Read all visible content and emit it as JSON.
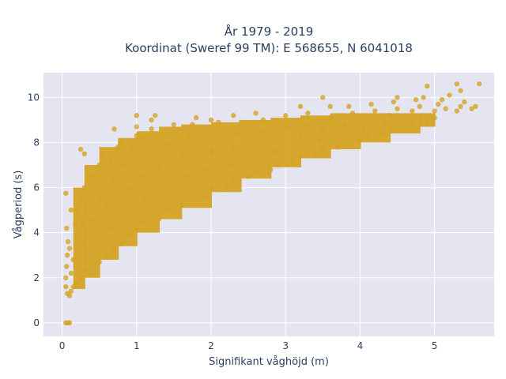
{
  "chart_data": {
    "type": "scatter",
    "title_line1": "År 1979 - 2019",
    "title_line2": "Koordinat (Sweref 99 TM): E 568655, N 6041018",
    "xlabel": "Signifikant våghöjd (m)",
    "ylabel": "Vågperiod (s)",
    "xlim": [
      -0.25,
      5.8
    ],
    "ylim": [
      -0.6,
      11.1
    ],
    "x_ticks": [
      0,
      1,
      2,
      3,
      4,
      5
    ],
    "y_ticks": [
      0,
      2,
      4,
      6,
      8,
      10
    ],
    "grid": true,
    "legend": "none",
    "colors": {
      "marker": "#d4a323",
      "plot_background": "#e5e5f2",
      "grid": "#ffffff",
      "text": "#2a3f5f"
    },
    "points": [
      [
        0.05,
        0.0
      ],
      [
        0.08,
        0.0
      ],
      [
        0.1,
        0.0
      ],
      [
        0.05,
        5.75
      ],
      [
        0.05,
        1.6
      ],
      [
        0.05,
        2.0
      ],
      [
        0.06,
        2.5
      ],
      [
        0.07,
        3.0
      ],
      [
        0.08,
        3.6
      ],
      [
        0.06,
        4.2
      ],
      [
        0.07,
        1.3
      ],
      [
        0.1,
        1.2
      ],
      [
        0.12,
        1.4
      ],
      [
        0.15,
        1.6
      ],
      [
        0.12,
        2.2
      ],
      [
        0.15,
        2.8
      ],
      [
        0.1,
        3.3
      ],
      [
        0.18,
        4.4
      ],
      [
        0.2,
        5.0
      ],
      [
        0.12,
        5.0
      ],
      [
        0.2,
        1.7
      ],
      [
        0.25,
        2.0
      ],
      [
        0.3,
        2.3
      ],
      [
        0.22,
        3.0
      ],
      [
        0.3,
        3.5
      ],
      [
        0.28,
        4.5
      ],
      [
        0.25,
        5.5
      ],
      [
        0.3,
        6.0
      ],
      [
        0.35,
        6.5
      ],
      [
        0.4,
        2.4
      ],
      [
        0.5,
        2.7
      ],
      [
        0.45,
        3.5
      ],
      [
        0.4,
        4.6
      ],
      [
        0.5,
        5.5
      ],
      [
        0.45,
        6.5
      ],
      [
        0.5,
        7.0
      ],
      [
        0.55,
        7.5
      ],
      [
        0.25,
        7.7
      ],
      [
        0.3,
        7.5
      ],
      [
        0.6,
        3.0
      ],
      [
        0.7,
        3.3
      ],
      [
        0.65,
        4.2
      ],
      [
        0.6,
        5.2
      ],
      [
        0.7,
        6.3
      ],
      [
        0.65,
        7.2
      ],
      [
        0.75,
        7.8
      ],
      [
        0.8,
        8.0
      ],
      [
        0.7,
        8.6
      ],
      [
        0.8,
        3.5
      ],
      [
        0.9,
        3.9
      ],
      [
        0.85,
        4.8
      ],
      [
        0.9,
        6.0
      ],
      [
        0.85,
        7.0
      ],
      [
        0.95,
        7.8
      ],
      [
        1.0,
        8.3
      ],
      [
        1.0,
        8.7
      ],
      [
        1.0,
        4.2
      ],
      [
        1.1,
        4.5
      ],
      [
        1.1,
        5.5
      ],
      [
        1.05,
        6.5
      ],
      [
        1.15,
        7.5
      ],
      [
        1.1,
        8.2
      ],
      [
        1.2,
        8.6
      ],
      [
        1.2,
        9.0
      ],
      [
        1.25,
        9.2
      ],
      [
        1.0,
        9.2
      ],
      [
        1.3,
        4.6
      ],
      [
        1.4,
        5.0
      ],
      [
        1.35,
        6.0
      ],
      [
        1.3,
        7.0
      ],
      [
        1.4,
        7.9
      ],
      [
        1.45,
        8.4
      ],
      [
        1.5,
        8.8
      ],
      [
        1.6,
        5.2
      ],
      [
        1.7,
        5.6
      ],
      [
        1.65,
        6.5
      ],
      [
        1.6,
        7.5
      ],
      [
        1.7,
        8.3
      ],
      [
        1.75,
        8.8
      ],
      [
        1.8,
        9.1
      ],
      [
        1.9,
        5.6
      ],
      [
        2.0,
        6.0
      ],
      [
        1.95,
        6.8
      ],
      [
        2.0,
        7.6
      ],
      [
        2.05,
        8.4
      ],
      [
        2.1,
        8.9
      ],
      [
        2.0,
        9.0
      ],
      [
        2.2,
        6.0
      ],
      [
        2.3,
        6.3
      ],
      [
        2.25,
        7.0
      ],
      [
        2.3,
        7.8
      ],
      [
        2.35,
        8.4
      ],
      [
        2.4,
        8.9
      ],
      [
        2.3,
        9.2
      ],
      [
        2.5,
        6.5
      ],
      [
        2.6,
        6.7
      ],
      [
        2.55,
        7.3
      ],
      [
        2.6,
        8.0
      ],
      [
        2.7,
        8.5
      ],
      [
        2.7,
        9.0
      ],
      [
        2.6,
        9.3
      ],
      [
        2.8,
        6.8
      ],
      [
        2.9,
        7.0
      ],
      [
        2.85,
        7.6
      ],
      [
        2.9,
        8.2
      ],
      [
        3.0,
        8.7
      ],
      [
        3.0,
        9.2
      ],
      [
        3.1,
        7.2
      ],
      [
        3.2,
        7.4
      ],
      [
        3.15,
        7.9
      ],
      [
        3.2,
        8.3
      ],
      [
        3.3,
        8.8
      ],
      [
        3.3,
        9.3
      ],
      [
        3.2,
        9.6
      ],
      [
        3.4,
        7.5
      ],
      [
        3.5,
        7.7
      ],
      [
        3.45,
        8.1
      ],
      [
        3.5,
        8.6
      ],
      [
        3.6,
        9.1
      ],
      [
        3.6,
        9.6
      ],
      [
        3.7,
        7.8
      ],
      [
        3.8,
        8.0
      ],
      [
        3.75,
        8.4
      ],
      [
        3.8,
        8.8
      ],
      [
        3.9,
        9.3
      ],
      [
        3.85,
        9.6
      ],
      [
        4.0,
        8.1
      ],
      [
        4.1,
        8.3
      ],
      [
        4.05,
        8.6
      ],
      [
        4.1,
        9.0
      ],
      [
        4.2,
        9.4
      ],
      [
        4.15,
        9.7
      ],
      [
        4.3,
        8.4
      ],
      [
        4.4,
        8.6
      ],
      [
        4.35,
        8.9
      ],
      [
        4.4,
        9.2
      ],
      [
        4.5,
        9.5
      ],
      [
        4.45,
        9.8
      ],
      [
        4.6,
        8.7
      ],
      [
        4.7,
        8.8
      ],
      [
        4.65,
        9.1
      ],
      [
        4.7,
        9.4
      ],
      [
        4.8,
        9.6
      ],
      [
        4.75,
        9.9
      ],
      [
        4.9,
        8.9
      ],
      [
        5.0,
        9.1
      ],
      [
        5.0,
        9.4
      ],
      [
        5.05,
        9.7
      ],
      [
        5.15,
        9.5
      ],
      [
        5.1,
        9.9
      ],
      [
        5.2,
        10.1
      ],
      [
        5.3,
        9.4
      ],
      [
        5.35,
        9.6
      ],
      [
        5.4,
        9.8
      ],
      [
        5.3,
        10.6
      ],
      [
        5.35,
        10.3
      ],
      [
        5.5,
        9.5
      ],
      [
        5.55,
        9.6
      ],
      [
        5.6,
        10.6
      ],
      [
        4.9,
        10.5
      ],
      [
        4.85,
        10.0
      ],
      [
        3.5,
        10.0
      ],
      [
        4.5,
        10.0
      ]
    ],
    "bands": [
      {
        "x0": 0.15,
        "x1": 0.3,
        "y0": 1.5,
        "y1": 6.0
      },
      {
        "x0": 0.3,
        "x1": 0.5,
        "y0": 2.0,
        "y1": 7.0
      },
      {
        "x0": 0.5,
        "x1": 0.75,
        "y0": 2.8,
        "y1": 7.8
      },
      {
        "x0": 0.75,
        "x1": 1.0,
        "y0": 3.4,
        "y1": 8.2
      },
      {
        "x0": 1.0,
        "x1": 1.3,
        "y0": 4.0,
        "y1": 8.5
      },
      {
        "x0": 1.3,
        "x1": 1.6,
        "y0": 4.6,
        "y1": 8.7
      },
      {
        "x0": 1.6,
        "x1": 2.0,
        "y0": 5.1,
        "y1": 8.8
      },
      {
        "x0": 2.0,
        "x1": 2.4,
        "y0": 5.8,
        "y1": 8.9
      },
      {
        "x0": 2.4,
        "x1": 2.8,
        "y0": 6.4,
        "y1": 9.0
      },
      {
        "x0": 2.8,
        "x1": 3.2,
        "y0": 6.9,
        "y1": 9.1
      },
      {
        "x0": 3.2,
        "x1": 3.6,
        "y0": 7.3,
        "y1": 9.2
      },
      {
        "x0": 3.6,
        "x1": 4.0,
        "y0": 7.7,
        "y1": 9.3
      },
      {
        "x0": 4.0,
        "x1": 4.4,
        "y0": 8.0,
        "y1": 9.3
      },
      {
        "x0": 4.4,
        "x1": 4.8,
        "y0": 8.4,
        "y1": 9.3
      },
      {
        "x0": 4.8,
        "x1": 5.0,
        "y0": 8.7,
        "y1": 9.3
      }
    ]
  }
}
